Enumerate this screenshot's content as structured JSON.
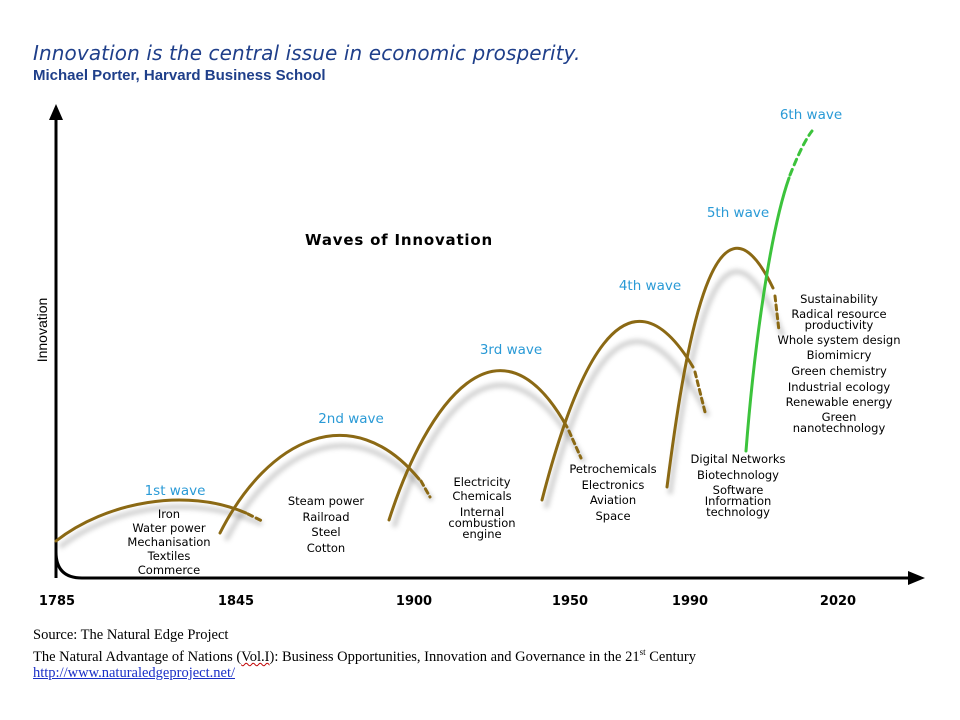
{
  "header": {
    "quote": "Innovation is the central issue in economic prosperity.",
    "author": "Michael Porter, Harvard Business School"
  },
  "diagram": {
    "title": "Waves of Innovation",
    "y_axis_label": "Innovation",
    "x_ticks": [
      "1785",
      "1845",
      "1900",
      "1950",
      "1990",
      "2020"
    ],
    "colors": {
      "wave": "#8b6914",
      "sixth_wave": "#3cc33c",
      "wave_label": "#2a9ad6",
      "text": "#000000",
      "axis": "#000000"
    },
    "waves": [
      {
        "label": "1st wave",
        "items": [
          "Iron",
          "Water power",
          "Mechanisation",
          "Textiles",
          "Commerce"
        ]
      },
      {
        "label": "2nd wave",
        "items": [
          "Steam power",
          "Railroad",
          "Steel",
          "Cotton"
        ]
      },
      {
        "label": "3rd wave",
        "items": [
          "Electricity",
          "Chemicals",
          "Internal",
          "combustion",
          "engine"
        ]
      },
      {
        "label": "4th wave",
        "items": [
          "Petrochemicals",
          "Electronics",
          "Aviation",
          "Space"
        ]
      },
      {
        "label": "5th wave",
        "items": [
          "Digital Networks",
          "Biotechnology",
          "Software",
          "Information",
          "technology"
        ]
      },
      {
        "label": "6th wave",
        "items": [
          "Sustainability",
          "Radical resource",
          "productivity",
          "Whole system design",
          "Biomimicry",
          "Green chemistry",
          "Industrial ecology",
          "Renewable energy",
          "Green",
          "nanotechnology"
        ]
      }
    ]
  },
  "source": {
    "line1": "Source: The Natural Edge Project",
    "line2_pre": "The Natural Advantage of Nations (",
    "line2_vol": "Vol.I",
    "line2_post": "): Business Opportunities, Innovation and Governance in the 21",
    "line2_sup": "st",
    "line2_end": " Century",
    "url": "http://www.naturaledgeproject.net/"
  }
}
